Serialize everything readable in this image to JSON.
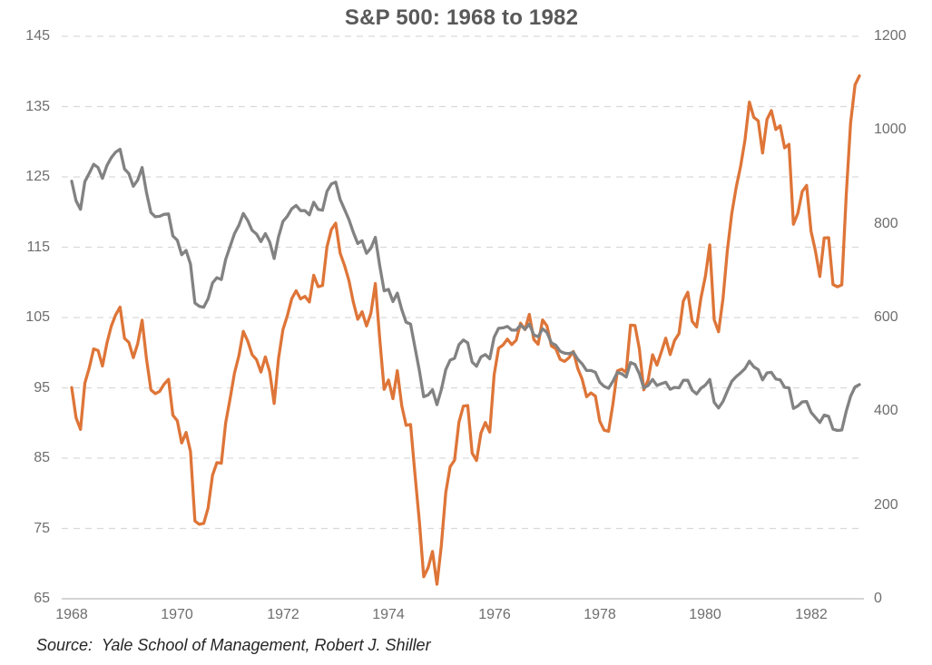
{
  "source_note": "Source:  Yale School of Management, Robert J. Shiller",
  "colors": {
    "background": "#ffffff",
    "title_text": "#595959",
    "tick_label_text": "#6e6e6e",
    "source_text": "#262626",
    "gridline": "#d9d9d9",
    "axis_line": "#c6c6c6",
    "orange_series": "#de7538",
    "gray_series": "#828282"
  },
  "chart_data": {
    "type": "line",
    "title": "S&P 500: 1968 to 1982",
    "x": {
      "unit": "month",
      "start": "1968-01",
      "end": "1982-12",
      "points": 180,
      "tick_labels": [
        "1968",
        "1970",
        "1972",
        "1974",
        "1976",
        "1978",
        "1980",
        "1982"
      ],
      "tick_years": [
        1968,
        1970,
        1972,
        1974,
        1976,
        1978,
        1980,
        1982
      ]
    },
    "left_axis": {
      "min": 65,
      "max": 145,
      "tick_step": 10,
      "ticks": [
        65,
        75,
        85,
        95,
        105,
        115,
        125,
        135,
        145
      ]
    },
    "right_axis": {
      "min": 0,
      "max": 1200,
      "tick_step": 200,
      "ticks": [
        0,
        200,
        400,
        600,
        800,
        1000,
        1200
      ]
    },
    "grid": {
      "horizontal": "dashed, aligned to left-axis ticks",
      "vertical": "none"
    },
    "legend": "none",
    "series": [
      {
        "id": "orange",
        "axis": "left",
        "color": "#de7538",
        "stroke_width": 3.3,
        "values": [
          95.04,
          90.75,
          89.09,
          95.67,
          97.87,
          100.53,
          100.3,
          98.11,
          101.34,
          103.76,
          105.4,
          106.48,
          102.04,
          101.46,
          99.3,
          101.26,
          104.62,
          99.14,
          94.71,
          94.18,
          94.51,
          95.52,
          96.21,
          91.11,
          90.31,
          87.16,
          88.65,
          85.95,
          76.06,
          75.59,
          75.72,
          77.92,
          82.58,
          84.37,
          84.28,
          90.05,
          93.49,
          97.11,
          99.6,
          103.04,
          101.64,
          99.72,
          99.0,
          97.24,
          99.4,
          97.29,
          92.78,
          99.17,
          103.3,
          105.24,
          107.69,
          108.81,
          107.65,
          108.01,
          107.21,
          111.01,
          109.39,
          109.56,
          115.05,
          117.5,
          118.42,
          114.16,
          112.42,
          110.27,
          107.22,
          104.75,
          105.83,
          103.8,
          105.61,
          109.84,
          102.03,
          94.78,
          96.11,
          93.45,
          97.44,
          92.46,
          89.67,
          89.79,
          82.82,
          76.03,
          68.12,
          69.44,
          71.74,
          67.07,
          72.56,
          80.1,
          83.78,
          84.72,
          90.1,
          92.4,
          92.49,
          85.71,
          84.67,
          88.57,
          90.07,
          88.7,
          96.86,
          100.64,
          101.08,
          101.93,
          101.16,
          101.77,
          104.2,
          103.29,
          105.45,
          101.89,
          101.19,
          104.66,
          103.81,
          100.96,
          100.57,
          99.05,
          98.76,
          99.29,
          100.18,
          97.75,
          96.23,
          93.74,
          94.28,
          93.82,
          90.25,
          88.98,
          88.82,
          92.71,
          97.41,
          97.66,
          97.19,
          103.92,
          103.86,
          100.58,
          94.71,
          96.11,
          99.71,
          98.23,
          100.11,
          102.07,
          99.73,
          101.73,
          102.71,
          107.36,
          108.6,
          104.47,
          103.66,
          107.78,
          110.87,
          115.34,
          104.69,
          102.97,
          107.69,
          114.55,
          119.83,
          123.5,
          126.51,
          130.22,
          135.65,
          133.48,
          132.97,
          128.4,
          133.19,
          134.43,
          131.73,
          132.28,
          129.13,
          129.63,
          118.27,
          119.8,
          122.92,
          123.79,
          117.28,
          114.5,
          110.84,
          116.31,
          116.35,
          109.7,
          109.38,
          109.65,
          122.43,
          132.66,
          138.1,
          139.37
        ]
      },
      {
        "id": "gray",
        "axis": "right",
        "color": "#828282",
        "stroke_width": 3.3,
        "values": [
          891,
          849,
          831,
          890,
          908,
          927,
          920,
          897,
          924,
          941,
          953,
          959,
          917,
          907,
          880,
          893,
          920,
          867,
          824,
          815,
          816,
          820,
          821,
          774,
          765,
          734,
          743,
          714,
          631,
          624,
          622,
          640,
          674,
          685,
          681,
          724,
          752,
          779,
          797,
          822,
          807,
          786,
          778,
          762,
          779,
          761,
          726,
          772,
          805,
          816,
          832,
          839,
          828,
          828,
          819,
          846,
          831,
          829,
          869,
          885,
          889,
          852,
          831,
          809,
          782,
          758,
          764,
          737,
          748,
          771,
          711,
          657,
          660,
          634,
          652,
          617,
          590,
          586,
          537,
          487,
          431,
          435,
          446,
          414,
          446,
          489,
          509,
          513,
          542,
          552,
          546,
          505,
          496,
          516,
          521,
          512,
          558,
          577,
          578,
          581,
          573,
          573,
          584,
          575,
          586,
          563,
          559,
          576,
          568,
          546,
          541,
          528,
          524,
          523,
          526,
          511,
          501,
          487,
          487,
          483,
          462,
          453,
          449,
          464,
          483,
          480,
          473,
          504,
          500,
          480,
          450,
          455,
          468,
          455,
          459,
          462,
          447,
          451,
          450,
          466,
          466,
          445,
          437,
          449,
          456,
          468,
          419,
          407,
          421,
          443,
          464,
          474,
          482,
          491,
          507,
          495,
          489,
          467,
          482,
          483,
          469,
          467,
          451,
          450,
          406,
          411,
          420,
          421,
          398,
          387,
          376,
          392,
          389,
          362,
          359,
          360,
          400,
          432,
          452,
          457
        ]
      }
    ]
  }
}
